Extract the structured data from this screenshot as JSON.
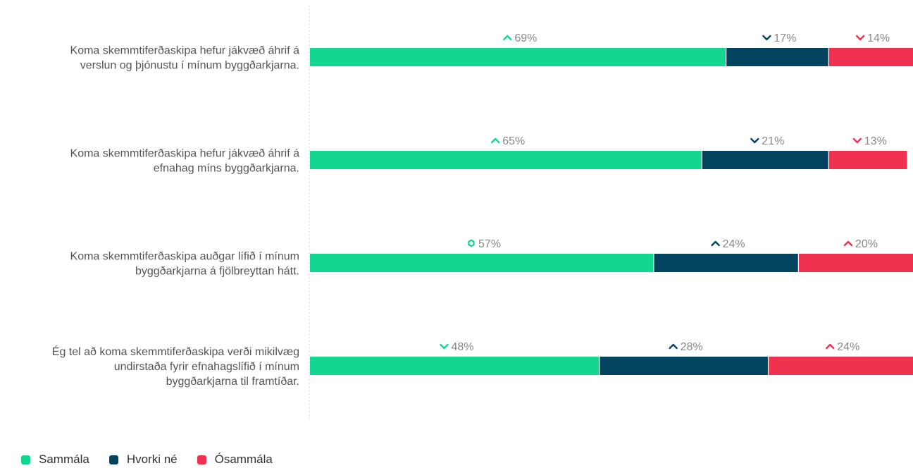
{
  "chart_data": {
    "type": "bar",
    "stacked": true,
    "orientation": "horizontal",
    "xlim": [
      0,
      100
    ],
    "unit": "%",
    "categories": [
      [
        "Koma skemmtiferðaskipa hefur jákvæð áhrif á",
        "verslun og þjónustu í mínum byggðarkjarna."
      ],
      [
        "Koma skemmtiferðaskipa hefur jákvæð áhrif á",
        "efnahag míns byggðarkjarna."
      ],
      [
        "Koma skemmtiferðaskipa auðgar lífið í mínum",
        "byggðarkjarna á fjölbreyttan hátt."
      ],
      [
        "Ég tel að koma skemmtiferðaskipa verði mikilvæg",
        "undirstaða fyrir efnahagslífið í mínum",
        "byggðarkjarna til framtíðar."
      ]
    ],
    "series": [
      {
        "name": "Sammála",
        "color": "#13d690",
        "values": [
          69,
          65,
          57,
          48
        ],
        "trend": [
          "up",
          "up",
          "same",
          "down"
        ]
      },
      {
        "name": "Hvorki né",
        "color": "#024460",
        "values": [
          17,
          21,
          24,
          28
        ],
        "trend": [
          "down",
          "down",
          "up",
          "up"
        ]
      },
      {
        "name": "Ósammála",
        "color": "#f0304f",
        "values": [
          14,
          13,
          20,
          24
        ],
        "trend": [
          "down",
          "down",
          "up",
          "up"
        ]
      }
    ],
    "legend_position": "bottom-left",
    "grid": false
  }
}
